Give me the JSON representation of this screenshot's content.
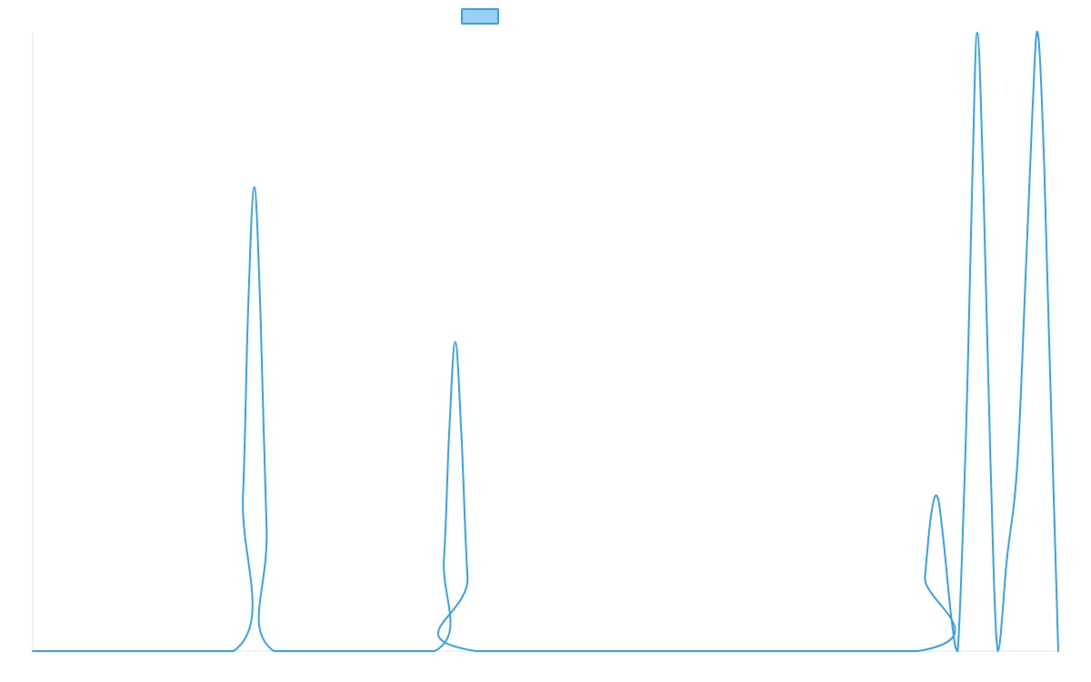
{
  "chart_data": {
    "type": "line",
    "title": "",
    "xlabel": "",
    "ylabel": "",
    "grid": false,
    "legend_position": "top",
    "colors": {
      "line": "#36a2eb",
      "legend_fill": "#9ad0f5",
      "axis": "#e6e6e6"
    },
    "xlim": [
      0,
      1
    ],
    "ylim": [
      0,
      1
    ],
    "series": [
      {
        "points": [
          [
            0.0,
            0.0
          ],
          [
            0.196,
            0.0
          ],
          [
            0.205,
            0.25
          ],
          [
            0.21,
            0.55
          ],
          [
            0.216,
            0.75
          ],
          [
            0.222,
            0.55
          ],
          [
            0.228,
            0.2
          ],
          [
            0.235,
            0.0
          ],
          [
            0.392,
            0.0
          ],
          [
            0.401,
            0.15
          ],
          [
            0.406,
            0.35
          ],
          [
            0.412,
            0.5
          ],
          [
            0.418,
            0.35
          ],
          [
            0.424,
            0.12
          ],
          [
            0.432,
            0.0
          ],
          [
            0.863,
            0.0
          ],
          [
            0.87,
            0.12
          ],
          [
            0.876,
            0.22
          ],
          [
            0.882,
            0.25
          ],
          [
            0.888,
            0.18
          ],
          [
            0.896,
            0.05
          ],
          [
            0.902,
            0.0
          ],
          [
            0.91,
            0.35
          ],
          [
            0.916,
            0.75
          ],
          [
            0.921,
            1.0
          ],
          [
            0.927,
            0.75
          ],
          [
            0.934,
            0.3
          ],
          [
            0.941,
            0.0
          ],
          [
            0.95,
            0.15
          ],
          [
            0.96,
            0.3
          ],
          [
            0.968,
            0.6
          ],
          [
            0.975,
            0.88
          ],
          [
            0.98,
            1.0
          ],
          [
            0.986,
            0.8
          ],
          [
            0.992,
            0.45
          ],
          [
            1.0,
            0.0
          ]
        ]
      }
    ]
  }
}
